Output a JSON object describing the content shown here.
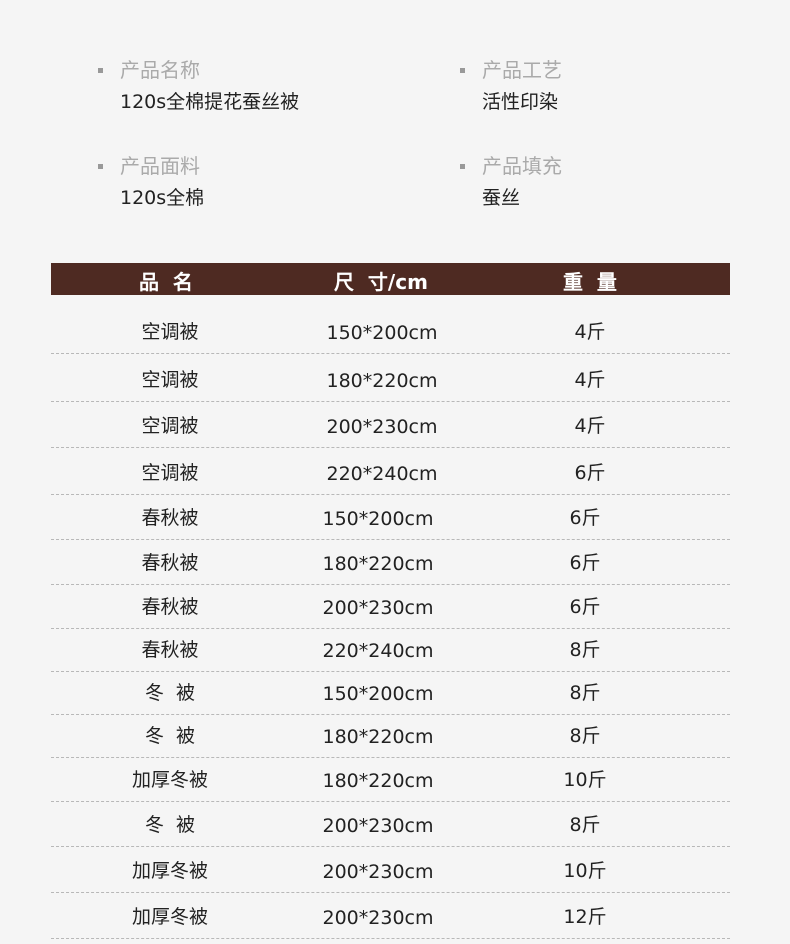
{
  "specs": [
    {
      "label": "产品名称",
      "value": "120s全棉提花蚕丝被"
    },
    {
      "label": "产品工艺",
      "value": "活性印染"
    },
    {
      "label": "产品面料",
      "value": "120s全棉"
    },
    {
      "label": "产品填充",
      "value": "蚕丝"
    }
  ],
  "table": {
    "headers": [
      "品  名",
      "尺  寸/cm",
      "重  量"
    ],
    "rows": [
      [
        "空调被",
        "150*200cm",
        "4斤"
      ],
      [
        "空调被",
        "180*220cm",
        "4斤"
      ],
      [
        "空调被",
        "200*230cm",
        "4斤"
      ],
      [
        "空调被",
        "220*240cm",
        "6斤"
      ],
      [
        "春秋被",
        "150*200cm",
        "6斤"
      ],
      [
        "春秋被",
        "180*220cm",
        "6斤"
      ],
      [
        "春秋被",
        "200*230cm",
        "6斤"
      ],
      [
        "春秋被",
        "220*240cm",
        "8斤"
      ],
      [
        "冬  被",
        "150*200cm",
        "8斤"
      ],
      [
        "冬  被",
        "180*220cm",
        "8斤"
      ],
      [
        "加厚冬被",
        "180*220cm",
        "10斤"
      ],
      [
        "冬  被",
        "200*230cm",
        "8斤"
      ],
      [
        "加厚冬被",
        "200*230cm",
        "10斤"
      ],
      [
        "加厚冬被",
        "200*230cm",
        "12斤"
      ]
    ]
  },
  "colors": {
    "header_bg": "#4e2a22",
    "background": "#f5f5f5"
  }
}
